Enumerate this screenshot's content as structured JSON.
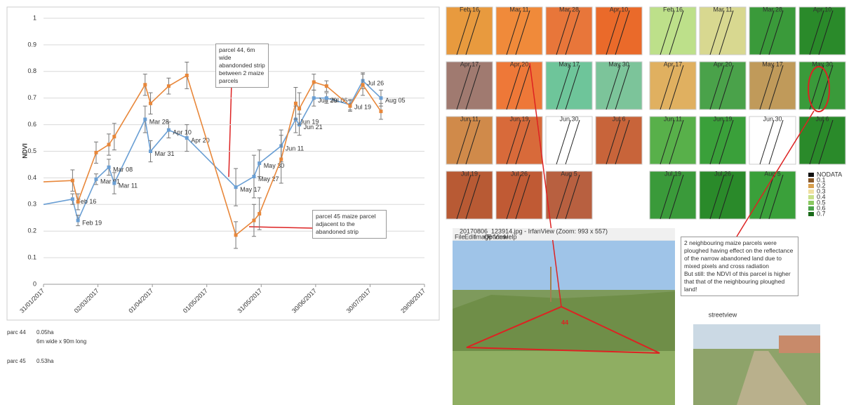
{
  "chart_data": {
    "type": "line",
    "ylabel": "NDVI",
    "x": [
      "2017-01-31",
      "2017-02-16",
      "2017-02-19",
      "2017-03-01",
      "2017-03-08",
      "2017-03-11",
      "2017-03-28",
      "2017-03-31",
      "2017-04-10",
      "2017-04-20",
      "2017-05-17",
      "2017-05-27",
      "2017-05-30",
      "2017-06-11",
      "2017-06-19",
      "2017-06-21",
      "2017-06-29",
      "2017-07-06",
      "2017-07-19",
      "2017-07-26",
      "2017-08-05"
    ],
    "series": [
      {
        "color": "#6a9fd4",
        "values": [
          0.3,
          0.32,
          0.24,
          0.395,
          0.44,
          0.38,
          0.62,
          0.5,
          0.58,
          0.55,
          0.365,
          0.405,
          0.455,
          0.52,
          0.62,
          0.6,
          0.7,
          0.7,
          0.675,
          0.765,
          0.7
        ],
        "errors": [
          null,
          0.02,
          0.02,
          0.02,
          0.03,
          0.04,
          0.05,
          0.04,
          0.03,
          0.05,
          0.07,
          0.08,
          0.05,
          0.06,
          0.05,
          0.04,
          0.03,
          0.02,
          0.02,
          0.03,
          0.03
        ],
        "labels": [
          null,
          "Feb 16",
          "Feb 19",
          "Mar 01",
          "Mar 08",
          "Mar 11",
          "Mar 28",
          "Mar 31",
          "Apr 10",
          "Apr 20",
          "May 17",
          "May 27",
          "May 30",
          "Jun 11",
          "Jun 19",
          "Jun 21",
          "Jun 29",
          "Jul 06",
          "Jul 19",
          "Jul 26",
          "Aug 05"
        ]
      },
      {
        "color": "#e8873a",
        "values": [
          0.385,
          0.39,
          0.31,
          0.495,
          0.525,
          0.555,
          0.75,
          0.68,
          0.745,
          0.785,
          0.185,
          0.24,
          0.265,
          0.47,
          0.68,
          0.66,
          0.76,
          0.745,
          0.67,
          0.75,
          0.65
        ],
        "errors": [
          null,
          0.04,
          0.03,
          0.04,
          0.04,
          0.05,
          0.04,
          0.04,
          0.03,
          0.05,
          0.05,
          0.06,
          0.06,
          0.09,
          0.06,
          0.06,
          0.03,
          0.02,
          0.02,
          0.04,
          0.03
        ]
      }
    ],
    "xlim": [
      "2017-01-31",
      "2017-08-29"
    ],
    "xticks": [
      {
        "value": "2017-01-31",
        "label": "31/01/2017"
      },
      {
        "value": "2017-03-02",
        "label": "02/03/2017"
      },
      {
        "value": "2017-04-01",
        "label": "01/04/2017"
      },
      {
        "value": "2017-05-01",
        "label": "01/05/2017"
      },
      {
        "value": "2017-05-31",
        "label": "31/05/2017"
      },
      {
        "value": "2017-06-30",
        "label": "30/06/2017"
      },
      {
        "value": "2017-07-30",
        "label": "30/07/2017"
      },
      {
        "value": "2017-08-29",
        "label": "29/08/2017"
      }
    ],
    "ylim": [
      0,
      1
    ],
    "yticks": [
      0,
      0.1,
      0.2,
      0.3,
      0.4,
      0.5,
      0.6,
      0.7,
      0.8,
      0.9,
      1
    ],
    "grid": true,
    "annotations": [
      "parcel 44, 6m wide abandonded strip between 2 maize parcels",
      "parcel 45 maize parcel adjacent to the abandoned strip"
    ]
  },
  "notes": [
    [
      "parc 44",
      "0.05ha",
      "6m wide x 90m long"
    ],
    [
      "parc 45",
      "0.53ha"
    ]
  ],
  "tiles": [
    "Feb 16",
    "Mar 11",
    "Mar 28",
    "Apr 10",
    "Apr 17",
    "Apr 20",
    "May 17",
    "May 30",
    "Jun 11",
    "Jun 19",
    "Jun 30",
    "Jul 6",
    "Jul 19",
    "Jul 26",
    "Aug 5"
  ],
  "ndvi_legend": [
    "NODATA",
    "0.1",
    "0.2",
    "0.3",
    "0.4",
    "0.5",
    "0.6",
    "0.7"
  ],
  "photo": {
    "window_title": "20170806_123914.jpg - IrfanView (Zoom: 993 x 557)",
    "menu": [
      "File",
      "Edit",
      "Image",
      "Options",
      "View",
      "Help"
    ],
    "label": "44"
  },
  "comment": "2 neighbouring maize parcels were ploughed having effect on the reflectance of the narrow abandoned land due to mixed pixels and cross radiation\nBut still: the NDVI of this parcel is higher that that of the neighbouring ploughed land!",
  "streetview": "streetview"
}
